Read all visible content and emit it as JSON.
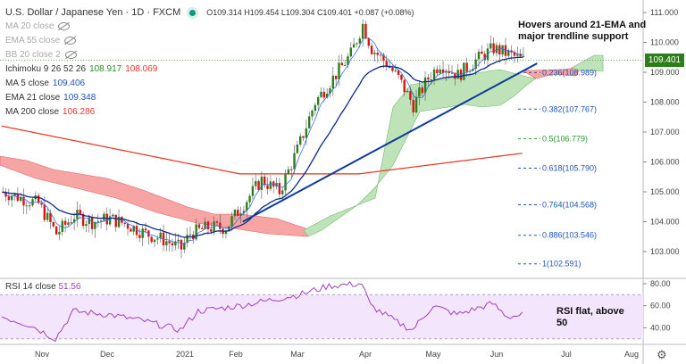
{
  "header": {
    "title": "U.S. Dollar / Japanese Yen · 1D · FXCM",
    "open": "O109.314",
    "high": "H109.454",
    "low": "L109.304",
    "close": "C109.401",
    "change": "+0.087 (+0.08%)"
  },
  "legend": {
    "ma20": "MA 20 close",
    "ema55": "EMA 55 close",
    "bb": "BB 20 close 2",
    "ichimoku": "Ichimoku 9 26 52 26",
    "ichimoku_v1": "108.917",
    "ichimoku_v2": "108.069",
    "ma5": "MA 5 close",
    "ma5_v": "109.406",
    "ema21": "EMA 21 close",
    "ema21_v": "109.348",
    "ma200": "MA 200 close",
    "ma200_v": "106.286"
  },
  "rsi_legend": {
    "label": "RSI 14 close",
    "value": "51.56"
  },
  "annotations": {
    "main_line1": "Hovers around 21-EMA and",
    "main_line2": "major trendline support",
    "rsi_line1": "RSI flat, above",
    "rsi_line2": "50"
  },
  "last_price": "109.401",
  "fib_levels": [
    {
      "label": "0.236(108.989)",
      "price": 108.989,
      "color": "#2255bb"
    },
    {
      "label": "0.382(107.767)",
      "price": 107.767,
      "color": "#2255bb"
    },
    {
      "label": "0.5(106.779)",
      "price": 106.779,
      "color": "#2a9a2a"
    },
    {
      "label": "0.618(105.790)",
      "price": 105.79,
      "color": "#2255bb"
    },
    {
      "label": "0.764(104.568)",
      "price": 104.568,
      "color": "#2255bb"
    },
    {
      "label": "0.886(103.546)",
      "price": 103.546,
      "color": "#2255bb"
    },
    {
      "label": "1(102.591)",
      "price": 102.591,
      "color": "#2255bb"
    }
  ],
  "chart_data": {
    "type": "candlestick",
    "title": "U.S. Dollar / Japanese Yen · 1D · FXCM",
    "price_axis": {
      "ticks": [
        "111.000",
        "110.000",
        "109.000",
        "108.000",
        "107.000",
        "106.000",
        "105.000",
        "104.000",
        "103.000"
      ],
      "range": [
        102.1,
        111.4
      ]
    },
    "rsi_axis": {
      "ticks": [
        "80.00",
        "60.00",
        "40.00"
      ],
      "range": [
        25,
        85
      ],
      "band": [
        30,
        70
      ]
    },
    "x_ticks": [
      "Nov",
      "Dec",
      "2021",
      "Feb",
      "Mar",
      "Apr",
      "May",
      "Jun",
      "Jul",
      "Aug"
    ],
    "close_keypoints": [
      [
        0,
        105.0
      ],
      [
        6,
        104.8
      ],
      [
        12,
        104.6
      ],
      [
        18,
        103.6
      ],
      [
        24,
        104.2
      ],
      [
        30,
        104.0
      ],
      [
        36,
        104.1
      ],
      [
        42,
        103.9
      ],
      [
        48,
        103.6
      ],
      [
        54,
        103.4
      ],
      [
        60,
        103.1
      ],
      [
        63,
        103.6
      ],
      [
        69,
        103.8
      ],
      [
        75,
        103.8
      ],
      [
        81,
        104.6
      ],
      [
        87,
        105.4
      ],
      [
        93,
        105.0
      ],
      [
        99,
        106.4
      ],
      [
        105,
        108.0
      ],
      [
        111,
        108.8
      ],
      [
        117,
        109.6
      ],
      [
        121,
        110.6
      ],
      [
        124,
        109.8
      ],
      [
        129,
        109.3
      ],
      [
        133,
        108.8
      ],
      [
        138,
        107.9
      ],
      [
        143,
        108.8
      ],
      [
        147,
        109.3
      ],
      [
        153,
        108.9
      ],
      [
        159,
        109.4
      ],
      [
        165,
        109.8
      ],
      [
        170,
        109.6
      ],
      [
        175,
        109.4
      ]
    ],
    "ma200_keypoints": [
      [
        0,
        107.2
      ],
      [
        80,
        105.6
      ],
      [
        120,
        105.6
      ],
      [
        175,
        106.29
      ]
    ],
    "rsi_keypoints": [
      [
        0,
        50
      ],
      [
        10,
        42
      ],
      [
        18,
        30
      ],
      [
        24,
        55
      ],
      [
        36,
        52
      ],
      [
        48,
        46
      ],
      [
        60,
        38
      ],
      [
        66,
        55
      ],
      [
        80,
        60
      ],
      [
        90,
        65
      ],
      [
        100,
        70
      ],
      [
        110,
        78
      ],
      [
        121,
        80
      ],
      [
        124,
        60
      ],
      [
        133,
        45
      ],
      [
        138,
        38
      ],
      [
        145,
        60
      ],
      [
        153,
        52
      ],
      [
        165,
        62
      ],
      [
        170,
        50
      ],
      [
        175,
        51.56
      ]
    ],
    "trendline": {
      "from": [
        81,
        104.0
      ],
      "to": [
        180,
        109.3
      ]
    }
  }
}
